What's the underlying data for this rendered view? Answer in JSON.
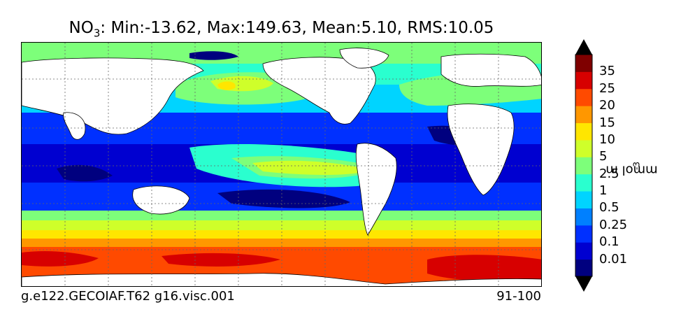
{
  "title": {
    "variable": "NO",
    "subscript": "3",
    "stats": ": Min:-13.62, Max:149.63, Mean:5.10, RMS:10.05"
  },
  "footer": {
    "case_name": "g.e122.GECOIAF.T62 g16.visc.001",
    "years": "91-100"
  },
  "colorbar": {
    "units_base": "mmol m",
    "units_exponent": "-3",
    "levels": [
      "0.01",
      "0.1",
      "0.25",
      "0.5",
      "1",
      "2.5",
      "5",
      "10",
      "15",
      "20",
      "25",
      "35"
    ],
    "colors": [
      "#00007f",
      "#0000d0",
      "#0030ff",
      "#0080ff",
      "#00d4ff",
      "#2affcf",
      "#7dff7a",
      "#cfff2a",
      "#ffe600",
      "#ff9700",
      "#ff4a00",
      "#d70000",
      "#7f0000"
    ],
    "extend": "both"
  },
  "map": {
    "land_color": "#ffffff",
    "grid": "dotted"
  }
}
